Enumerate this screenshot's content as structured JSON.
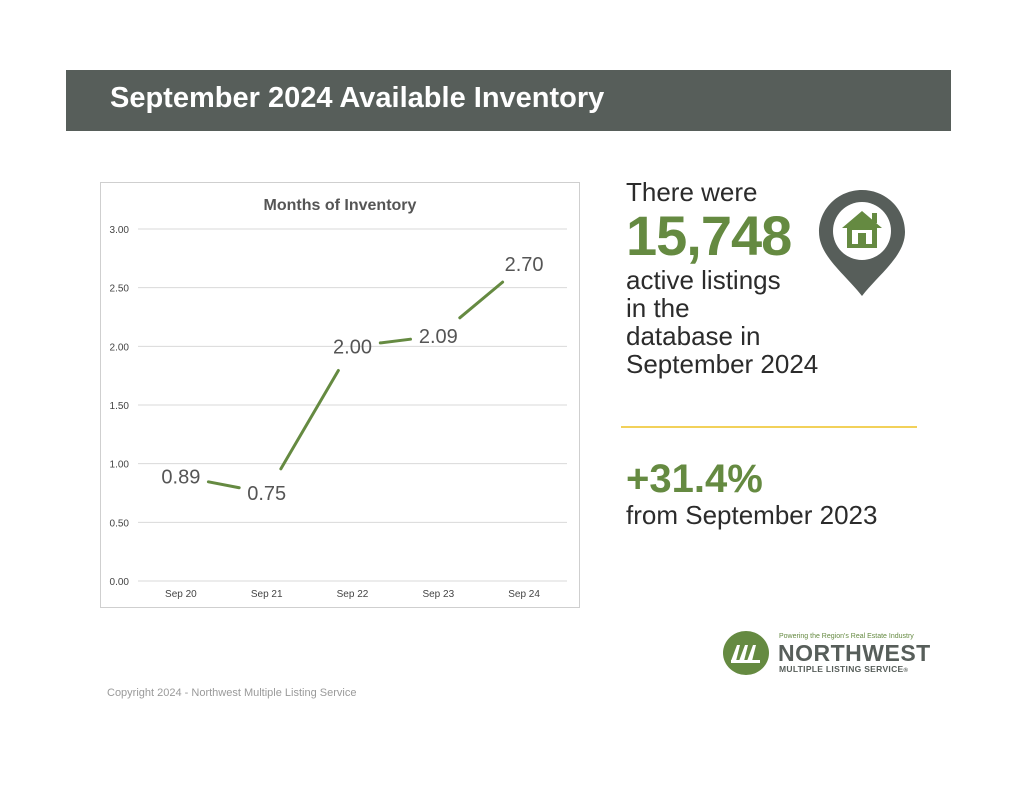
{
  "header": {
    "title": "September 2024 Available Inventory"
  },
  "chart_data": {
    "type": "line",
    "title": "Months of Inventory",
    "categories": [
      "Sep 20",
      "Sep 21",
      "Sep 22",
      "Sep 23",
      "Sep 24"
    ],
    "values": [
      0.89,
      0.75,
      2.0,
      2.09,
      2.7
    ],
    "data_labels": [
      "0.89",
      "0.75",
      "2.00",
      "2.09",
      "2.70"
    ],
    "yticks": [
      "0.00",
      "0.50",
      "1.00",
      "1.50",
      "2.00",
      "2.50",
      "3.00"
    ],
    "ylim": [
      0,
      3
    ],
    "xlabel": "",
    "ylabel": "",
    "grid": true,
    "legend": "none",
    "line_color": "#658a41"
  },
  "stats": {
    "intro": "There were",
    "count": "15,748",
    "desc_lines": [
      "active listings",
      "in the",
      "database in",
      "September 2024"
    ],
    "change_value": "+31.4%",
    "change_label": "from September 2023",
    "accent_color": "#658a41",
    "icon": "house-pin-icon"
  },
  "footer": {
    "copyright": "Copyright 2024 - Northwest Multiple Listing Service",
    "logo": {
      "tagline": "Powering the Region's Real Estate Industry",
      "name": "NORTHWEST",
      "subtitle": "MULTIPLE LISTING SERVICE",
      "registered": "®"
    }
  }
}
